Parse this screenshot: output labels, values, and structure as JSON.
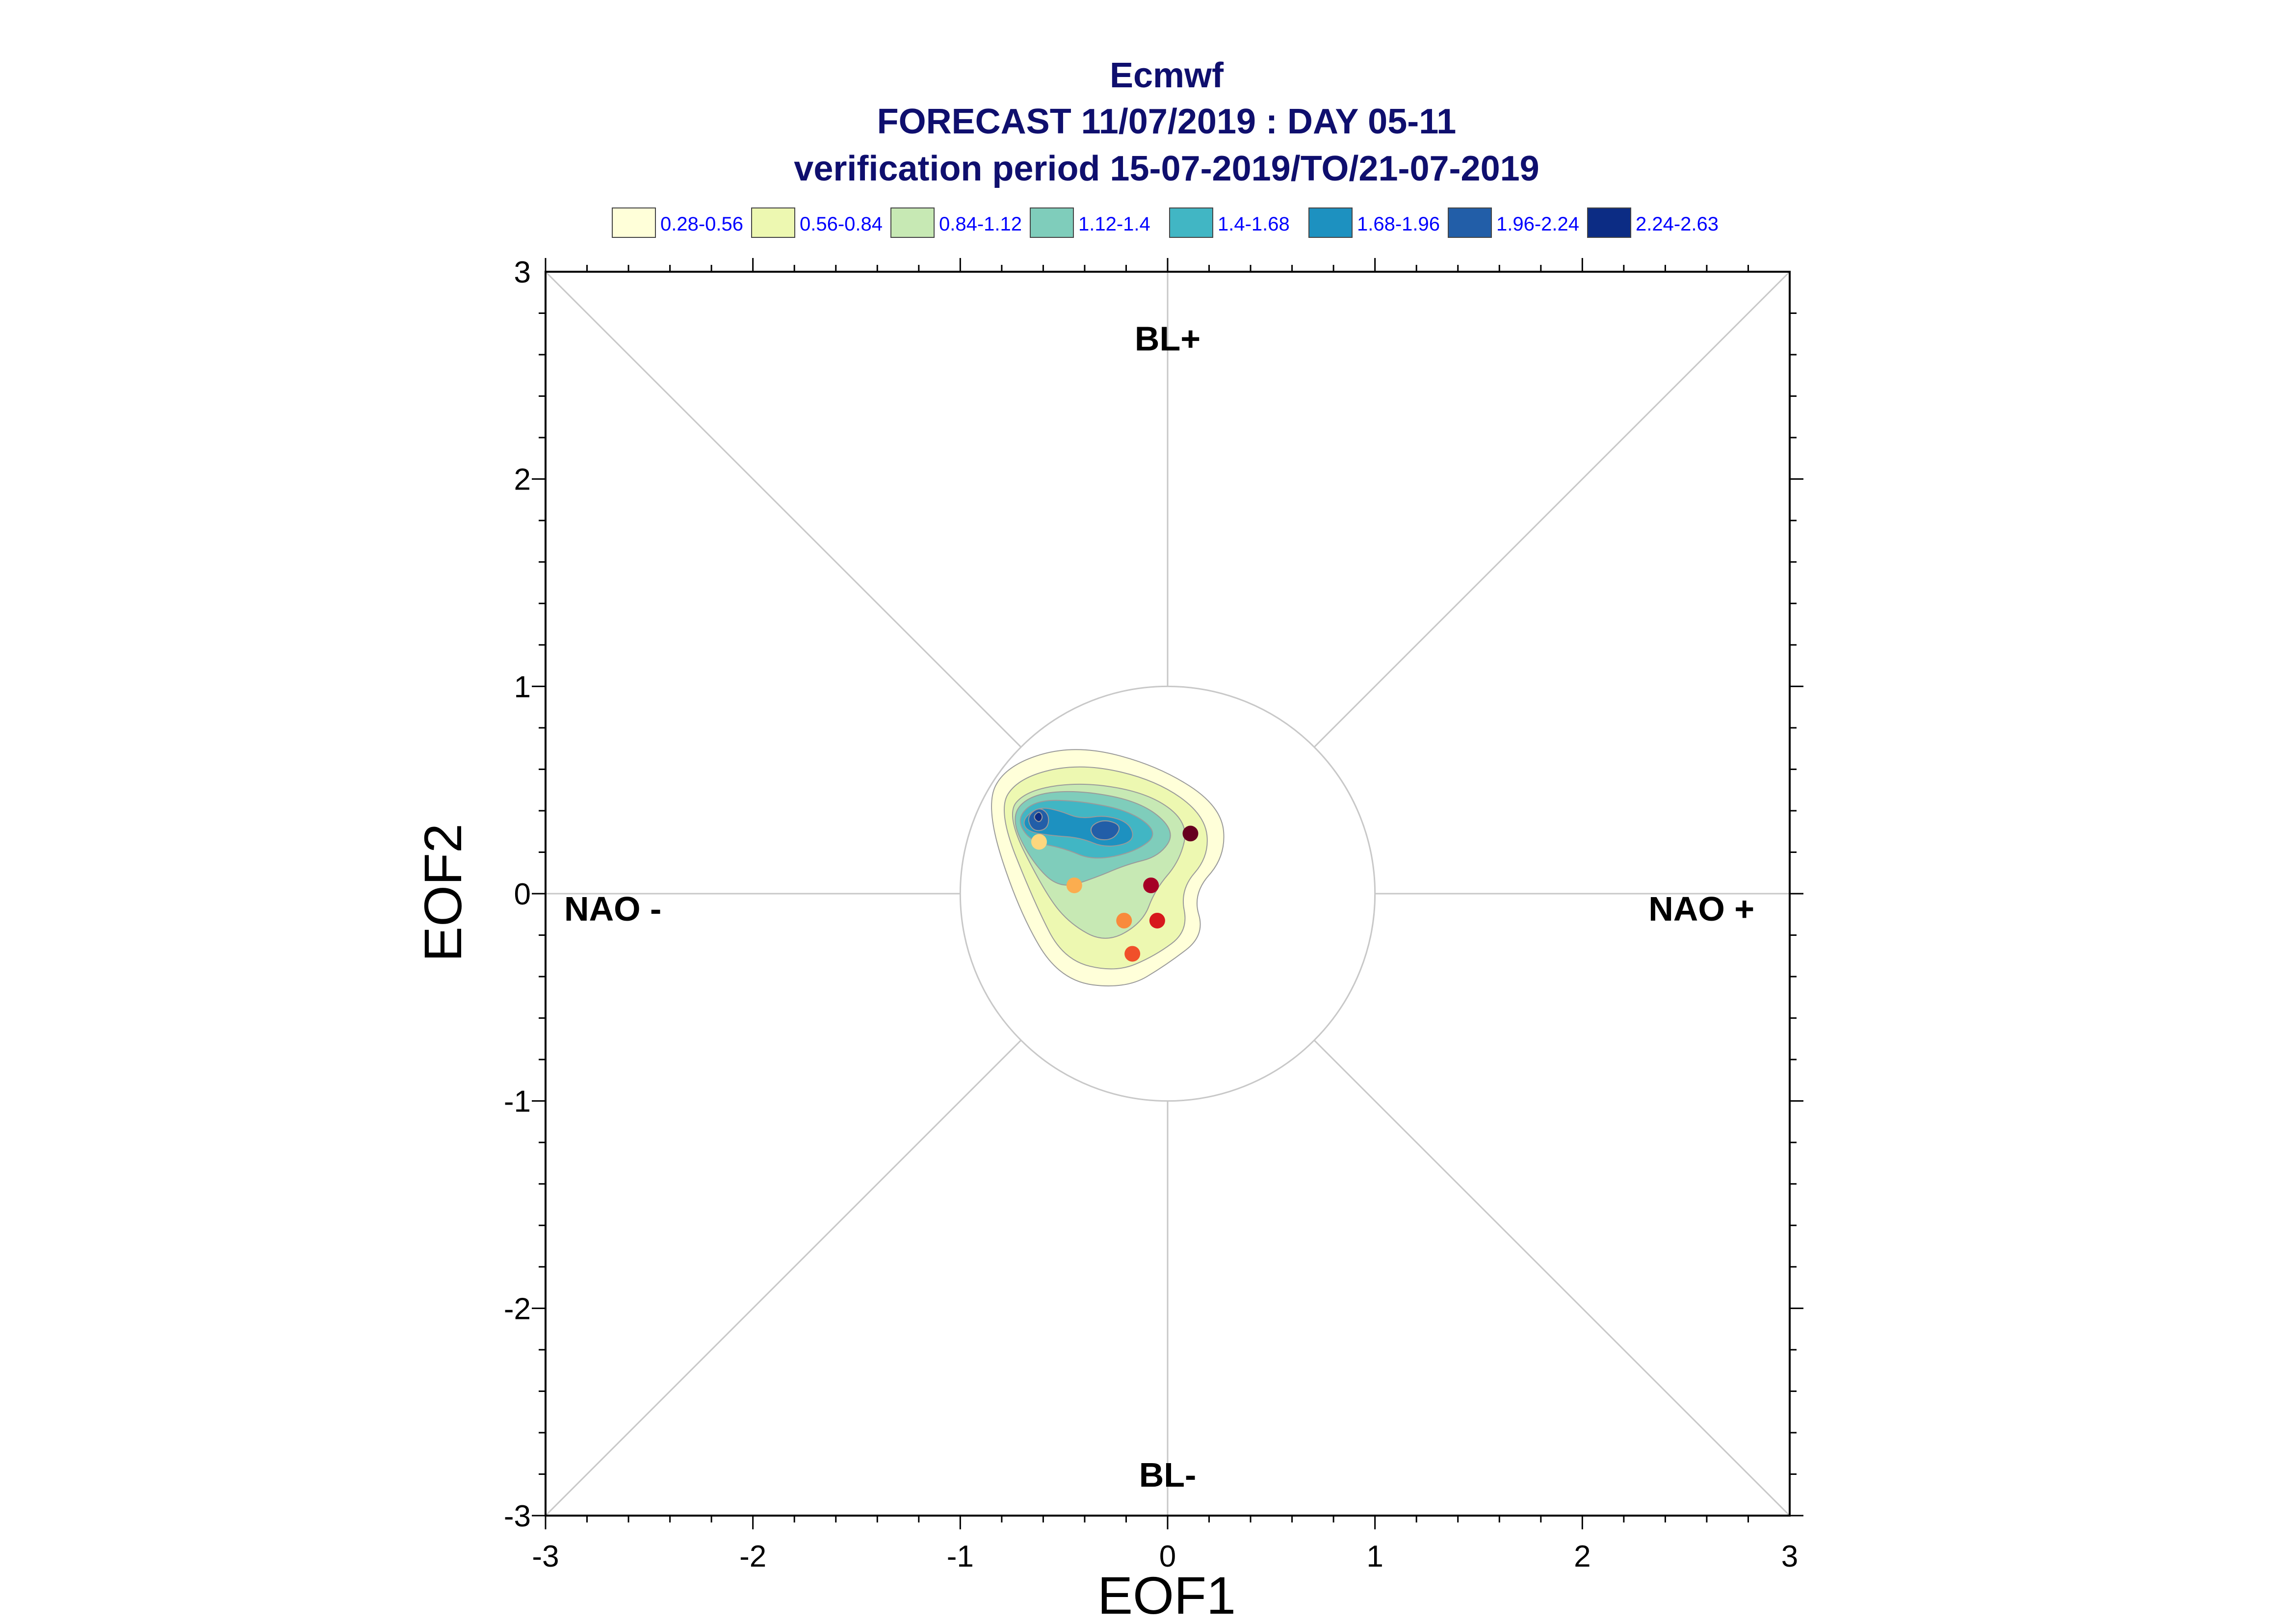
{
  "chart_data": {
    "type": "scatter",
    "title": "Ecmwf",
    "subtitle": "FORECAST 11/07/2019 : DAY 05-11",
    "subtitle2": "verification period 15-07-2019/TO/21-07-2019",
    "xlabel": "EOF1",
    "ylabel": "EOF2",
    "xlim": [
      -3,
      3
    ],
    "ylim": [
      -3,
      3
    ],
    "xticks": [
      "-3",
      "-2",
      "-1",
      "0",
      "1",
      "2",
      "3"
    ],
    "yticks": [
      "-3",
      "-2",
      "-1",
      "0",
      "1",
      "2",
      "3"
    ],
    "regime_labels": {
      "top": "BL+",
      "bottom": "BL-",
      "left": "NAO -",
      "right": "NAO +"
    },
    "reference_circle_radius": 1,
    "legend": [
      {
        "label": "0.28-0.56",
        "color": "#ffffd9"
      },
      {
        "label": "0.56-0.84",
        "color": "#edf8b1"
      },
      {
        "label": "0.84-1.12",
        "color": "#c7e9b4"
      },
      {
        "label": "1.12-1.4",
        "color": "#7fcdbb"
      },
      {
        "label": "1.4-1.68",
        "color": "#41b6c4"
      },
      {
        "label": "1.68-1.96",
        "color": "#1d91c0"
      },
      {
        "label": "1.96-2.24",
        "color": "#225ea8"
      },
      {
        "label": "2.24-2.63",
        "color": "#0c2c84"
      }
    ],
    "points": [
      {
        "x": 0.11,
        "y": 0.29,
        "color": "#67001f"
      },
      {
        "x": -0.08,
        "y": 0.04,
        "color": "#a50026"
      },
      {
        "x": -0.05,
        "y": -0.13,
        "color": "#d7191c"
      },
      {
        "x": -0.17,
        "y": -0.29,
        "color": "#f0502a"
      },
      {
        "x": -0.21,
        "y": -0.13,
        "color": "#f98a3c"
      },
      {
        "x": -0.45,
        "y": 0.04,
        "color": "#fbad4f"
      },
      {
        "x": -0.62,
        "y": 0.25,
        "color": "#fdd77e"
      }
    ]
  }
}
